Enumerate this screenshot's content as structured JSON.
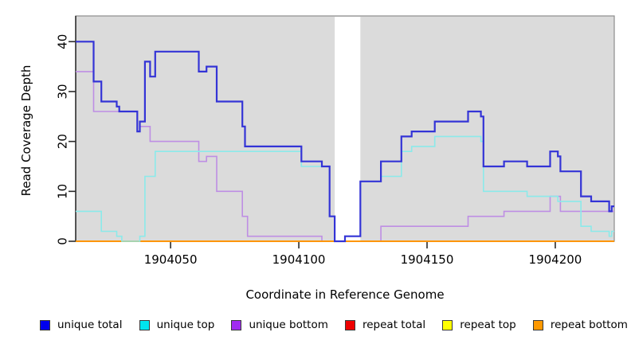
{
  "figure": {
    "x_axis_title": "Coordinate in Reference Genome",
    "y_axis_title": "Read Coverage Depth"
  },
  "legend": {
    "items": [
      {
        "label": "unique total",
        "swatch_color": "#0000EE"
      },
      {
        "label": "unique top",
        "swatch_color": "#00E5EE"
      },
      {
        "label": "unique bottom",
        "swatch_color": "#A12CF0"
      },
      {
        "label": "repeat total",
        "swatch_color": "#EE0000"
      },
      {
        "label": "repeat top",
        "swatch_color": "#FFFF00"
      },
      {
        "label": "repeat bottom",
        "swatch_color": "#FF9900"
      }
    ]
  },
  "chart_data": {
    "type": "line",
    "subtype": "step-after-coverage-plot",
    "title": "",
    "xlabel": "Coordinate in Reference Genome",
    "ylabel": "Read Coverage Depth",
    "xlim": [
      1904013,
      1904223
    ],
    "ylim": [
      0,
      45.15
    ],
    "x_ticks": [
      {
        "value": 1904050,
        "label": "1904050"
      },
      {
        "value": 1904100,
        "label": "1904100"
      },
      {
        "value": 1904150,
        "label": "1904150"
      },
      {
        "value": 1904200,
        "label": "1904200"
      }
    ],
    "y_ticks": [
      {
        "value": 0,
        "label": "0"
      },
      {
        "value": 10,
        "label": "10"
      },
      {
        "value": 20,
        "label": "20"
      },
      {
        "value": 30,
        "label": "30"
      },
      {
        "value": 40,
        "label": "40"
      }
    ],
    "plot_background": "#DBDBDB",
    "border_color": "#8C8C8C",
    "axis_color": "#2b2b2b",
    "coverage_gap": {
      "x_start": 1904114,
      "x_end": 1904124,
      "color": "#FFFFFF"
    },
    "series": [
      {
        "name": "unique total",
        "color": "#3434D6",
        "width": 2.2,
        "points": [
          [
            1904013,
            40
          ],
          [
            1904020,
            32
          ],
          [
            1904023,
            28
          ],
          [
            1904029,
            27
          ],
          [
            1904030,
            26
          ],
          [
            1904037,
            22
          ],
          [
            1904038,
            24
          ],
          [
            1904040,
            36
          ],
          [
            1904042,
            33
          ],
          [
            1904044,
            38
          ],
          [
            1904061,
            34
          ],
          [
            1904064,
            35
          ],
          [
            1904068,
            28
          ],
          [
            1904078,
            23
          ],
          [
            1904079,
            19
          ],
          [
            1904101,
            16
          ],
          [
            1904109,
            15
          ],
          [
            1904112,
            5
          ],
          [
            1904114,
            0
          ],
          [
            1904118,
            1
          ],
          [
            1904124,
            12
          ],
          [
            1904132,
            16
          ],
          [
            1904140,
            21
          ],
          [
            1904144,
            22
          ],
          [
            1904153,
            24
          ],
          [
            1904166,
            26
          ],
          [
            1904171,
            25
          ],
          [
            1904172,
            15
          ],
          [
            1904180,
            16
          ],
          [
            1904189,
            15
          ],
          [
            1904198,
            18
          ],
          [
            1904201,
            17
          ],
          [
            1904202,
            14
          ],
          [
            1904210,
            9
          ],
          [
            1904214,
            8
          ],
          [
            1904221,
            6
          ],
          [
            1904222,
            7
          ]
        ]
      },
      {
        "name": "unique top",
        "color": "#8BEAEA",
        "width": 1.6,
        "points": [
          [
            1904013,
            6
          ],
          [
            1904023,
            2
          ],
          [
            1904029,
            1
          ],
          [
            1904031,
            0
          ],
          [
            1904038,
            1
          ],
          [
            1904040,
            13
          ],
          [
            1904044,
            18
          ],
          [
            1904101,
            15
          ],
          [
            1904112,
            5
          ],
          [
            1904114,
            0
          ],
          [
            1904118,
            1
          ],
          [
            1904124,
            12
          ],
          [
            1904132,
            13
          ],
          [
            1904140,
            18
          ],
          [
            1904144,
            19
          ],
          [
            1904153,
            21
          ],
          [
            1904171,
            20
          ],
          [
            1904172,
            10
          ],
          [
            1904189,
            9
          ],
          [
            1904201,
            8
          ],
          [
            1904210,
            3
          ],
          [
            1904214,
            2
          ],
          [
            1904221,
            1
          ],
          [
            1904222,
            2
          ]
        ]
      },
      {
        "name": "unique bottom",
        "color": "#BE8EE4",
        "width": 1.6,
        "points": [
          [
            1904013,
            34
          ],
          [
            1904020,
            26
          ],
          [
            1904037,
            22
          ],
          [
            1904038,
            23
          ],
          [
            1904042,
            20
          ],
          [
            1904061,
            16
          ],
          [
            1904064,
            17
          ],
          [
            1904068,
            10
          ],
          [
            1904078,
            5
          ],
          [
            1904080,
            1
          ],
          [
            1904109,
            0
          ],
          [
            1904132,
            3
          ],
          [
            1904166,
            5
          ],
          [
            1904180,
            6
          ],
          [
            1904198,
            9
          ],
          [
            1904202,
            6
          ]
        ]
      },
      {
        "name": "repeat total",
        "color": "#DD4040",
        "width": 1.6,
        "points": [
          [
            1904013,
            0
          ]
        ]
      },
      {
        "name": "repeat top",
        "color": "#FFFF60",
        "width": 1.6,
        "points": [
          [
            1904013,
            0
          ]
        ]
      },
      {
        "name": "repeat bottom",
        "color": "#FF9500",
        "width": 2.0,
        "points": [
          [
            1904013,
            0
          ]
        ]
      }
    ],
    "z_draw_order": [
      "repeat total",
      "repeat top",
      "unique bottom",
      "repeat bottom",
      "unique top",
      "unique total"
    ],
    "legend_position": "bottom"
  }
}
